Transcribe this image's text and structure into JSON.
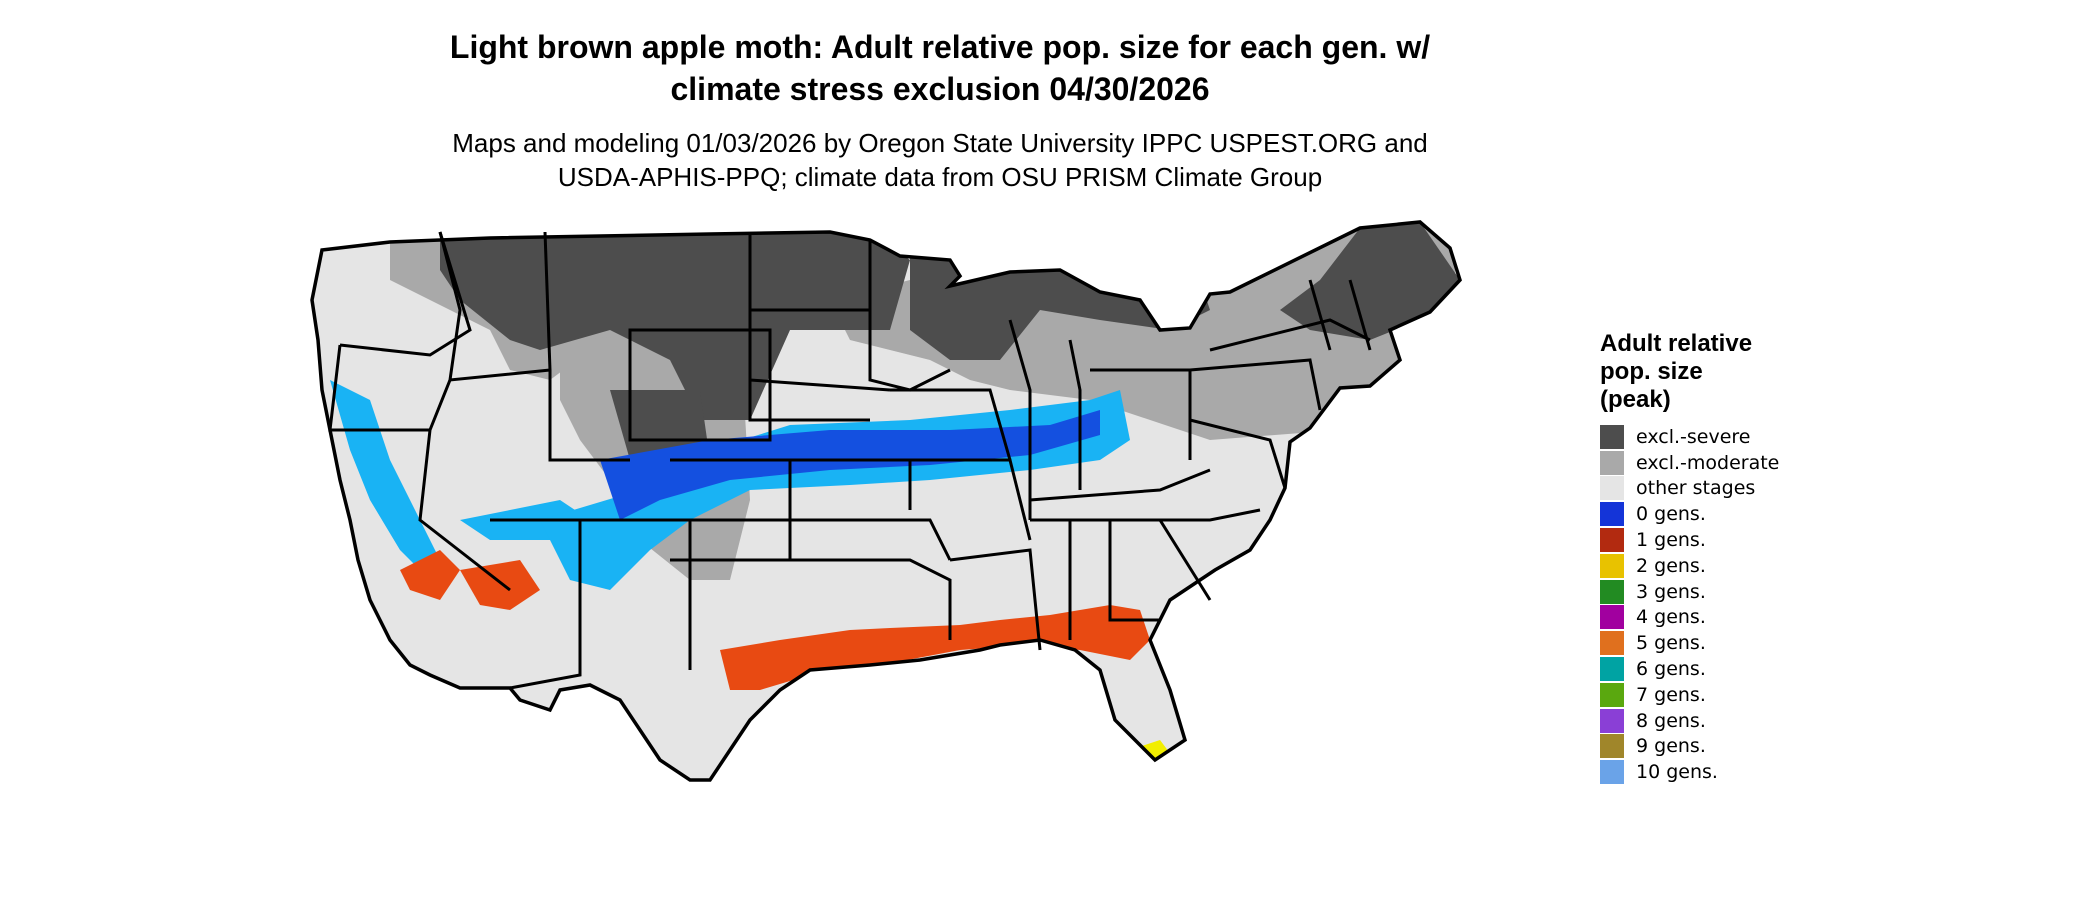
{
  "header": {
    "title_line1": "Light brown apple moth: Adult relative pop. size for each gen. w/",
    "title_line2": "climate stress exclusion 04/30/2026",
    "subtitle_line1": "Maps and modeling 01/03/2026 by Oregon State University IPPC USPEST.ORG and",
    "subtitle_line2": "USDA-APHIS-PPQ; climate data from OSU PRISM Climate Group"
  },
  "legend": {
    "title_line1": "Adult relative",
    "title_line2": "pop. size",
    "title_line3": "(peak)",
    "items": [
      {
        "label": "excl.-severe",
        "color": "#4d4d4d"
      },
      {
        "label": "excl.-moderate",
        "color": "#a9a9a9"
      },
      {
        "label": "other stages",
        "color": "#e5e5e5"
      },
      {
        "label": "0 gens.",
        "color": "#1434d8"
      },
      {
        "label": "1 gens.",
        "color": "#b22a10"
      },
      {
        "label": "2 gens.",
        "color": "#e8c200"
      },
      {
        "label": "3 gens.",
        "color": "#228b22"
      },
      {
        "label": "4 gens.",
        "color": "#a1009f"
      },
      {
        "label": "5 gens.",
        "color": "#e0701e"
      },
      {
        "label": "6 gens.",
        "color": "#00a3a3"
      },
      {
        "label": "7 gens.",
        "color": "#5aa80f"
      },
      {
        "label": "8 gens.",
        "color": "#8a3fd6"
      },
      {
        "label": "9 gens.",
        "color": "#a0862a"
      },
      {
        "label": "10 gens.",
        "color": "#6aa3e8"
      }
    ]
  },
  "map": {
    "colors": {
      "severe": "#4d4d4d",
      "moderate": "#a9a9a9",
      "other": "#e5e5e5",
      "blue_light": "#19b3f4",
      "blue_dark": "#1450e0",
      "red": "#e84a12",
      "yellow": "#f2ee00"
    }
  }
}
